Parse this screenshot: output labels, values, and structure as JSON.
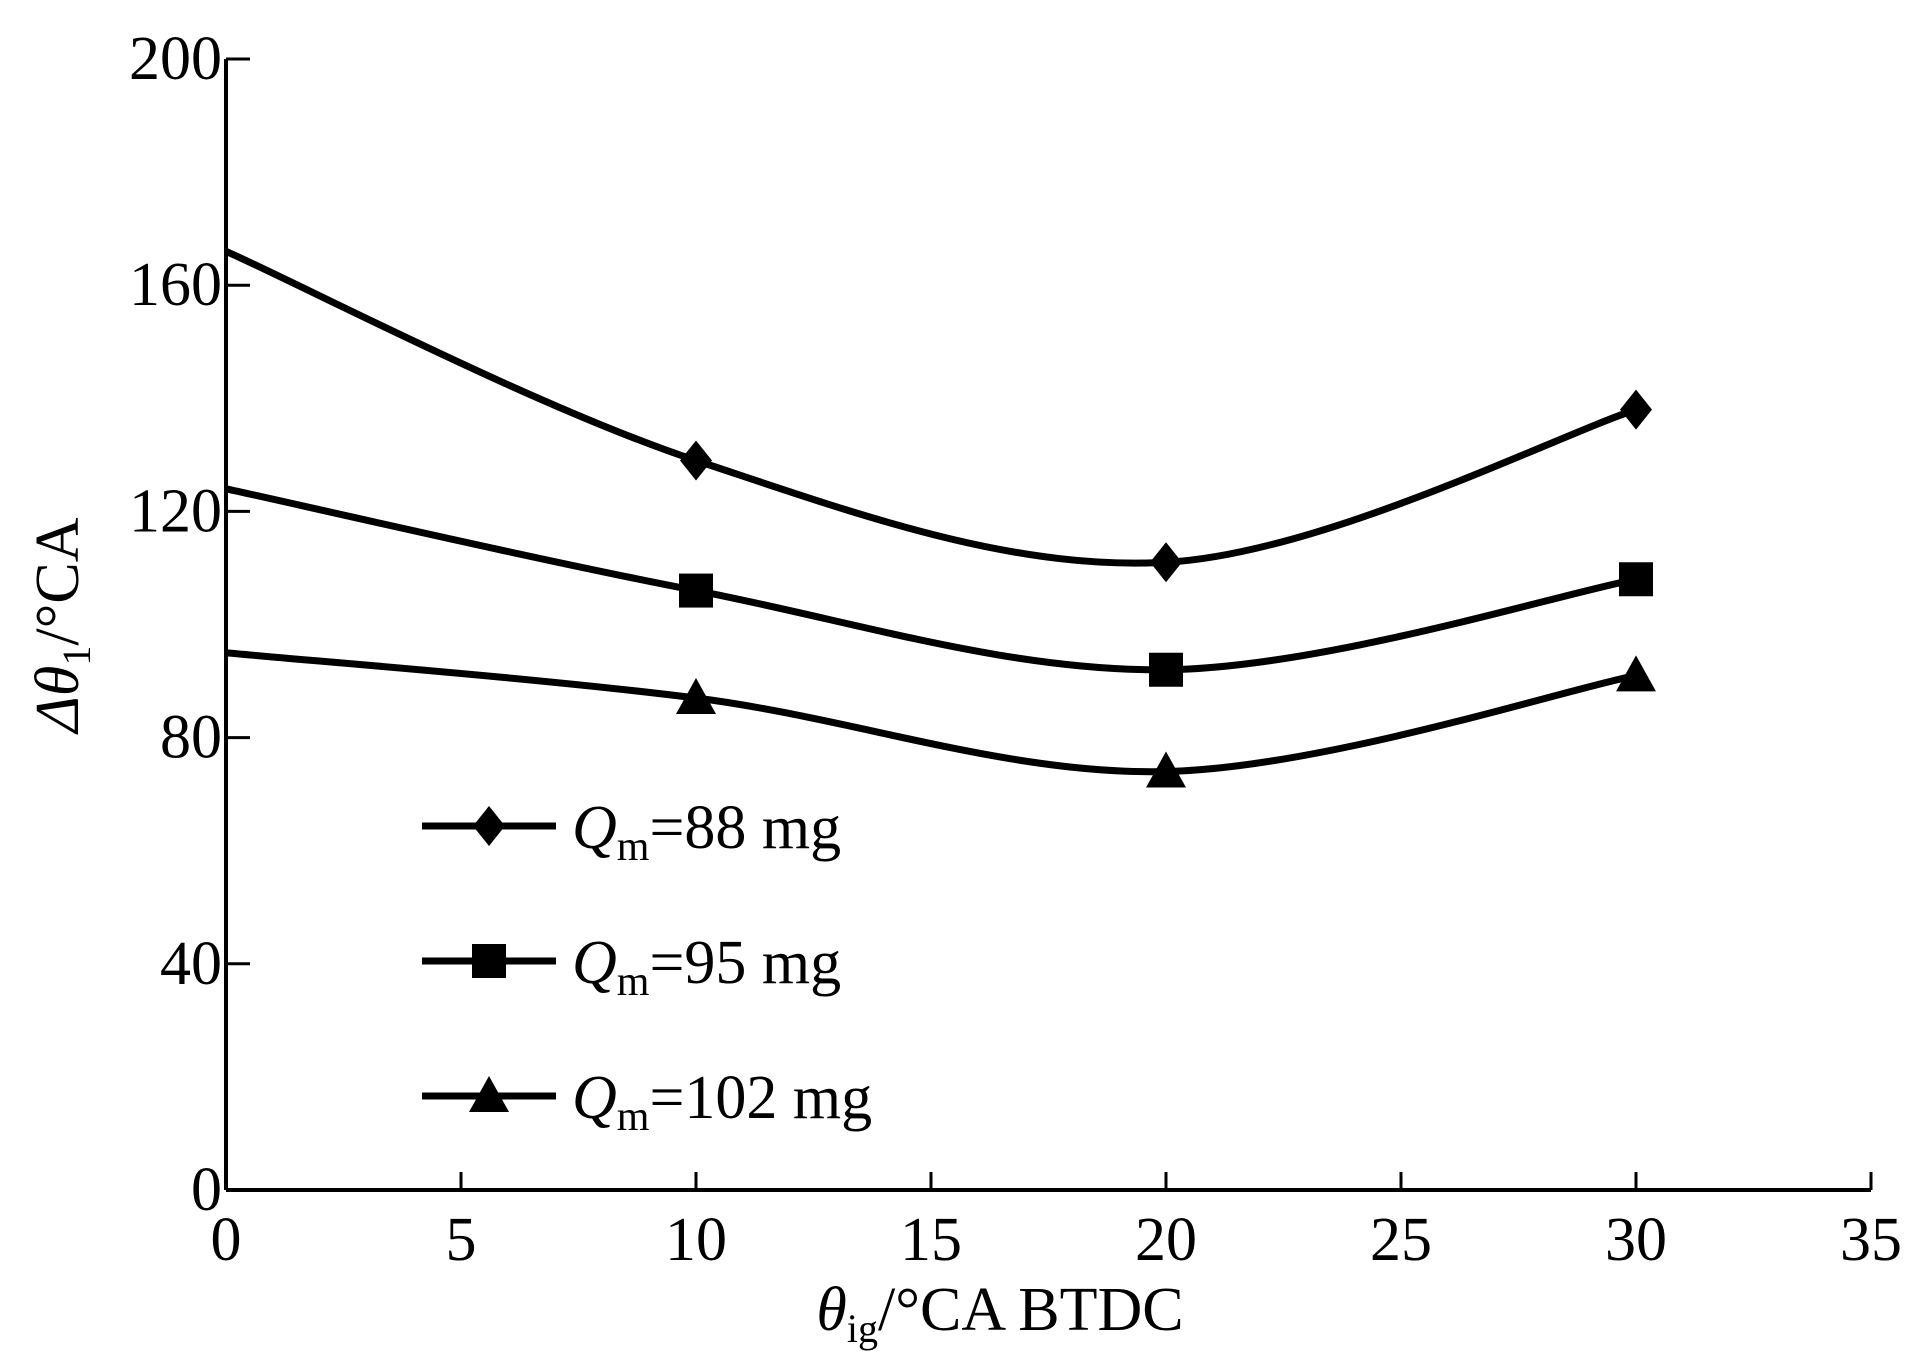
{
  "chart_data": {
    "type": "line",
    "title": "",
    "xlabel": "θig/°CA BTDC",
    "xlabel_parts": {
      "sym": "θ",
      "sub": "ig",
      "rest": "/°CA BTDC"
    },
    "ylabel": "Δθ1/°CA",
    "ylabel_parts": {
      "sym": "Δθ",
      "sub": "1",
      "rest": "/°CA"
    },
    "xlim": [
      0,
      35
    ],
    "ylim": [
      0,
      200
    ],
    "xticks": [
      0,
      5,
      10,
      15,
      20,
      25,
      30,
      35
    ],
    "xtick_labels": [
      "0",
      "5",
      "10",
      "15",
      "20",
      "25",
      "30",
      "35"
    ],
    "yticks": [
      0,
      40,
      80,
      120,
      160,
      200
    ],
    "ytick_labels": [
      "0",
      "40",
      "80",
      "120",
      "160",
      "200"
    ],
    "grid": false,
    "legend_position": "bottom-left",
    "series": [
      {
        "name": "Qm=88 mg",
        "label_sym": "Q",
        "label_sub": "m",
        "label_rest": "=88 mg",
        "marker": "diamond",
        "x": [
          0,
          10,
          20,
          30
        ],
        "values": [
          166,
          129,
          111,
          138
        ],
        "marker_shown": [
          false,
          true,
          true,
          true
        ]
      },
      {
        "name": "Qm=95 mg",
        "label_sym": "Q",
        "label_sub": "m",
        "label_rest": "=95 mg",
        "marker": "square",
        "x": [
          0,
          10,
          20,
          30
        ],
        "values": [
          124,
          106,
          92,
          108
        ],
        "marker_shown": [
          false,
          true,
          true,
          true
        ]
      },
      {
        "name": "Qm=102 mg",
        "label_sym": "Q",
        "label_sub": "m",
        "label_rest": "=102 mg",
        "marker": "triangle",
        "x": [
          0,
          10,
          20,
          30
        ],
        "values": [
          95,
          87,
          74,
          91
        ],
        "marker_shown": [
          false,
          true,
          true,
          true
        ]
      }
    ],
    "colors": {
      "line": "#000000",
      "background": "#ffffff"
    }
  }
}
